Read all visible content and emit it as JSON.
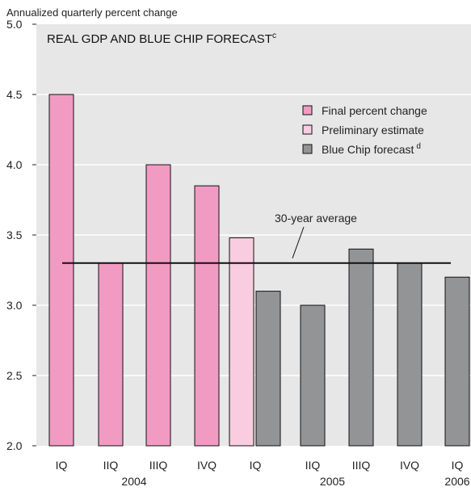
{
  "chart_data": {
    "type": "bar",
    "title": "REAL GDP AND BLUE CHIP FORECAST",
    "title_superscript": "c",
    "ylabel": "Annualized quarterly percent change",
    "ylim": [
      2.0,
      5.0
    ],
    "yticks": [
      "2.0",
      "2.5",
      "3.0",
      "3.5",
      "4.0",
      "4.5",
      "5.0"
    ],
    "grid": "horizontal",
    "legend_position": "top-right",
    "categories": [
      "IQ",
      "IIQ",
      "IIIQ",
      "IVQ",
      "IQ",
      "IIQ",
      "IIIQ",
      "IVQ",
      "IQ"
    ],
    "years": [
      {
        "label": "2004",
        "start": 0,
        "end": 3
      },
      {
        "label": "2005",
        "start": 4,
        "end": 7
      },
      {
        "label": "2006",
        "start": 8,
        "end": 8
      }
    ],
    "series": [
      {
        "name": "Final percent change",
        "color": "#f19bc3",
        "values": [
          4.5,
          3.3,
          4.0,
          3.85,
          null,
          null,
          null,
          null,
          null
        ]
      },
      {
        "name": "Preliminary estimate",
        "color": "#f9cce0",
        "values": [
          null,
          null,
          null,
          null,
          3.48,
          null,
          null,
          null,
          null
        ]
      },
      {
        "name": "Blue Chip forecast",
        "name_superscript": "d",
        "color": "#939496",
        "values": [
          null,
          null,
          null,
          null,
          3.1,
          3.0,
          3.4,
          3.3,
          3.2
        ]
      }
    ],
    "reference_line": {
      "label": "30-year average",
      "value": 3.3
    },
    "colors": {
      "plot_background": "#e7e7e7",
      "grid": "#ffffff",
      "bar_outline": "#111111"
    }
  }
}
